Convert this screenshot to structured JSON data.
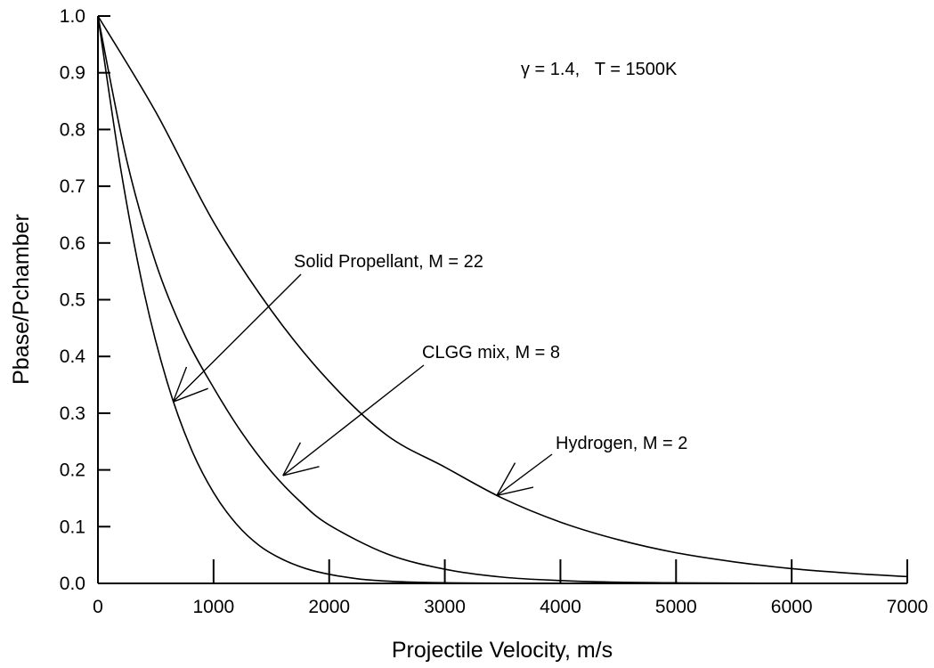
{
  "chart_data": {
    "type": "line",
    "title": "",
    "xlabel": "Projectile Velocity, m/s",
    "ylabel": "Pbase/Pchamber",
    "xlim": [
      0,
      7000
    ],
    "ylim": [
      0.0,
      1.0
    ],
    "x_ticks": [
      "0",
      "1000",
      "2000",
      "3000",
      "4000",
      "5000",
      "6000",
      "7000"
    ],
    "y_ticks": [
      "0.0",
      "0.1",
      "0.2",
      "0.3",
      "0.4",
      "0.5",
      "0.6",
      "0.7",
      "0.8",
      "0.9",
      "1.0"
    ],
    "grid": false,
    "line_color": "#000000",
    "conditions_text": "γ = 1.4,   T = 1500K",
    "series": [
      {
        "name": "Hydrogen, M = 2",
        "x": [
          0,
          500,
          1000,
          1500,
          2000,
          2500,
          3000,
          3500,
          4000,
          4500,
          5000,
          5500,
          6000,
          6500,
          7000
        ],
        "y": [
          1.0,
          0.831,
          0.637,
          0.481,
          0.356,
          0.261,
          0.205,
          0.15,
          0.108,
          0.077,
          0.054,
          0.038,
          0.026,
          0.018,
          0.012
        ]
      },
      {
        "name": "CLGG mix, M = 8",
        "x": [
          0,
          250,
          500,
          750,
          1000,
          1250,
          1500,
          1750,
          2000,
          2500,
          3000,
          3500,
          4000,
          4500,
          5000,
          5500,
          6000,
          6500,
          7000
        ],
        "y": [
          1.0,
          0.745,
          0.565,
          0.438,
          0.345,
          0.264,
          0.197,
          0.144,
          0.103,
          0.052,
          0.025,
          0.011,
          0.005,
          0.002,
          0.001,
          0.0005,
          0.0002,
          0.0001,
          0.0
        ]
      },
      {
        "name": "Solid Propellant, M = 22",
        "x": [
          0,
          200,
          400,
          600,
          800,
          1000,
          1200,
          1400,
          1600,
          1800,
          2000,
          2250,
          2500,
          2750,
          3000,
          3500,
          4000,
          5000,
          6000,
          7000
        ],
        "y": [
          1.0,
          0.727,
          0.512,
          0.354,
          0.24,
          0.16,
          0.104,
          0.066,
          0.042,
          0.026,
          0.016,
          0.008,
          0.004,
          0.002,
          0.001,
          0.0003,
          0.0001,
          0.0,
          0.0,
          0.0
        ]
      }
    ],
    "annotations": [
      {
        "text": "Solid Propellant, M = 22",
        "points_to": [
          650,
          0.32
        ]
      },
      {
        "text": "CLGG mix, M = 8",
        "points_to": [
          1600,
          0.19
        ]
      },
      {
        "text": "Hydrogen, M = 2",
        "points_to": [
          3450,
          0.155
        ]
      }
    ]
  }
}
